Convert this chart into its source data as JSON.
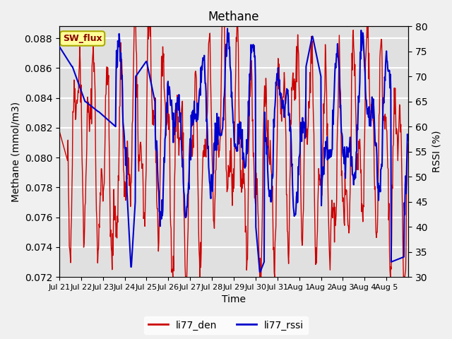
{
  "title": "Methane",
  "ylabel_left": "Methane (mmol/m3)",
  "ylabel_right": "RSSI (%)",
  "xlabel": "Time",
  "ylim_left": [
    0.072,
    0.0888
  ],
  "ylim_right": [
    30,
    80
  ],
  "yticks_left": [
    0.072,
    0.074,
    0.076,
    0.078,
    0.08,
    0.082,
    0.084,
    0.086,
    0.088
  ],
  "yticks_right": [
    30,
    35,
    40,
    45,
    50,
    55,
    60,
    65,
    70,
    75,
    80
  ],
  "xtick_labels": [
    "Jul 21",
    "Jul 22",
    "Jul 23",
    "Jul 24",
    "Jul 25",
    "Jul 26",
    "Jul 27",
    "Jul 28",
    "Jul 29",
    "Jul 30",
    "Jul 31",
    "Aug 1",
    "Aug 2",
    "Aug 3",
    "Aug 4",
    "Aug 5"
  ],
  "legend_labels": [
    "li77_den",
    "li77_rssi"
  ],
  "legend_colors": [
    "#cc0000",
    "#0000cc"
  ],
  "line_color_den": "#cc0000",
  "line_color_rssi": "#0000cc",
  "background_color": "#e0e0e0",
  "annotation_text": "SW_flux",
  "annotation_bg": "#ffff99",
  "annotation_border": "#aaaa00"
}
